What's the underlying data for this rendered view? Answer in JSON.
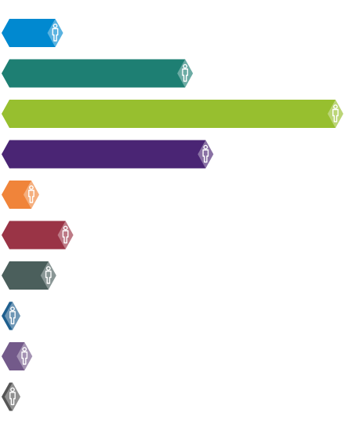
{
  "chart_data": {
    "type": "bar",
    "orientation": "horizontal",
    "title": "",
    "xlabel": "",
    "ylabel": "",
    "grid": false,
    "legend": "none",
    "marker_icon": "person-icon",
    "series": [
      {
        "values": [
          18,
          56,
          100,
          62,
          11,
          21,
          16,
          4,
          9,
          1
        ]
      }
    ],
    "colors": [
      "#0189d0",
      "#1e7f73",
      "#97bf2f",
      "#4a2574",
      "#f0843a",
      "#9a3446",
      "#4b5f5c",
      "#1f5f8e",
      "#735a8a",
      "#555555"
    ],
    "xlim": [
      0,
      100
    ]
  }
}
